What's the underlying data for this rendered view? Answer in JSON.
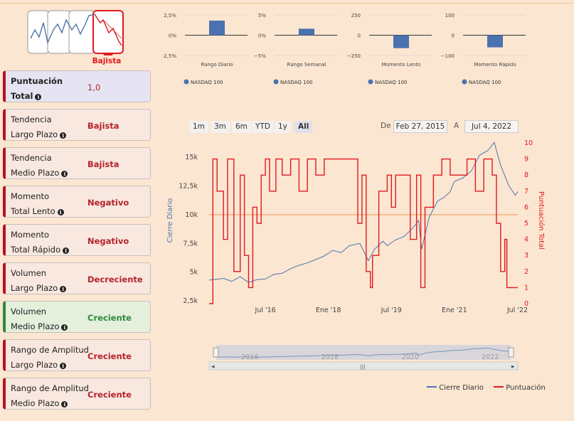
{
  "trend": {
    "label": "Bajista",
    "colors": {
      "accent": "#e0191e"
    }
  },
  "cards": [
    {
      "line1": "Puntuación",
      "line2": "Total",
      "value": "1,0",
      "kind": "total"
    },
    {
      "line1": "Tendencia",
      "line2": "Largo Plazo",
      "value": "Bajista",
      "kind": "red"
    },
    {
      "line1": "Tendencia",
      "line2": "Medio Plazo",
      "value": "Bajista",
      "kind": "red"
    },
    {
      "line1": "Momento",
      "line2": "Total Lento",
      "value": "Negativo",
      "kind": "red"
    },
    {
      "line1": "Momento",
      "line2": "Total Rápido",
      "value": "Negativo",
      "kind": "red"
    },
    {
      "line1": "Volumen",
      "line2": "Largo Plazo",
      "value": "Decreciente",
      "kind": "red"
    },
    {
      "line1": "Volumen",
      "line2": "Medio Plazo",
      "value": "Creciente",
      "kind": "green"
    },
    {
      "line1": "Rango de Amplitud",
      "line2": "Largo Plazo",
      "value": "Creciente",
      "kind": "red"
    },
    {
      "line1": "Rango de Amplitud",
      "line2": "Medio Plazo",
      "value": "Creciente",
      "kind": "red"
    }
  ],
  "range_selector": {
    "buttons": [
      "1m",
      "3m",
      "6m",
      "YTD",
      "1y",
      "All"
    ],
    "active": "All",
    "from_label": "De",
    "from_value": "Feb 27, 2015",
    "to_label": "A",
    "to_value": "Jul 4, 2022"
  },
  "legend": {
    "series1": "Cierre Diario",
    "series2": "Puntuación"
  },
  "chart_data": [
    {
      "type": "bar",
      "title": "Rango Diario",
      "categories": [
        "Rango Diario"
      ],
      "values": [
        1.8
      ],
      "yticks": [
        "2,5%",
        "0%",
        "−2,5%"
      ],
      "ylim": [
        -2.5,
        2.5
      ],
      "legend": "NASDAQ 100",
      "color": "#4a72b0"
    },
    {
      "type": "bar",
      "title": "Rango Semanal",
      "categories": [
        "Rango Semanal"
      ],
      "values": [
        1.6
      ],
      "yticks": [
        "5%",
        "0%",
        "−5%"
      ],
      "ylim": [
        -5,
        5
      ],
      "legend": "NASDAQ 100",
      "color": "#4a72b0"
    },
    {
      "type": "bar",
      "title": "Momento Lento",
      "categories": [
        "Momento Lento"
      ],
      "values": [
        -160
      ],
      "yticks": [
        "250",
        "0",
        "−250"
      ],
      "ylim": [
        -250,
        250
      ],
      "legend": "NASDAQ 100",
      "color": "#4a72b0"
    },
    {
      "type": "bar",
      "title": "Momento Rápido",
      "categories": [
        "Momento Rápido"
      ],
      "values": [
        -60
      ],
      "yticks": [
        "100",
        "0",
        "−100"
      ],
      "ylim": [
        -100,
        100
      ],
      "legend": "NASDAQ 100",
      "color": "#4a72b0"
    },
    {
      "type": "line",
      "ylabel": "Cierre Diario",
      "y2label": "Puntuación Total",
      "xticks": [
        "Jul '16",
        "Ene '18",
        "Jul '19",
        "Ene '21",
        "Jul '22"
      ],
      "yticks": [
        "2,5k",
        "5k",
        "7,5k",
        "10k",
        "12,5k",
        "15k"
      ],
      "y2ticks": [
        "0",
        "1",
        "2",
        "3",
        "4",
        "5",
        "6",
        "7",
        "8",
        "9",
        "10"
      ],
      "ylim": [
        2500,
        16500
      ],
      "y2lim": [
        0,
        10
      ],
      "xlim": [
        2015.16,
        2022.51
      ],
      "threshold": 10000,
      "navigator_ticks": [
        "2016",
        "2018",
        "2020",
        "2022"
      ],
      "series": [
        {
          "name": "Cierre Diario",
          "color": "#4f74ad",
          "x": [
            2015.16,
            2015.5,
            2015.7,
            2015.9,
            2016.1,
            2016.3,
            2016.5,
            2016.7,
            2016.9,
            2017.1,
            2017.3,
            2017.5,
            2017.7,
            2017.9,
            2018.1,
            2018.3,
            2018.5,
            2018.75,
            2018.95,
            2019.1,
            2019.3,
            2019.4,
            2019.6,
            2019.8,
            2020.0,
            2020.15,
            2020.22,
            2020.4,
            2020.6,
            2020.75,
            2020.9,
            2021.0,
            2021.2,
            2021.4,
            2021.6,
            2021.8,
            2021.95,
            2022.1,
            2022.3,
            2022.45,
            2022.51
          ],
          "y": [
            4300,
            4450,
            4200,
            4600,
            4100,
            4350,
            4400,
            4800,
            4900,
            5300,
            5600,
            5800,
            6100,
            6400,
            6900,
            6700,
            7300,
            7500,
            6000,
            7000,
            7700,
            7300,
            7800,
            8100,
            8800,
            9500,
            7000,
            9800,
            11200,
            11500,
            12000,
            12900,
            13200,
            13800,
            15200,
            15600,
            16300,
            14300,
            12500,
            11700,
            12000
          ]
        },
        {
          "name": "Puntuación",
          "color": "#e0191e",
          "x": [
            2015.16,
            2015.25,
            2015.35,
            2015.5,
            2015.6,
            2015.75,
            2015.9,
            2016.0,
            2016.1,
            2016.2,
            2016.3,
            2016.4,
            2016.5,
            2016.6,
            2016.75,
            2016.9,
            2017.1,
            2017.3,
            2017.5,
            2017.7,
            2017.9,
            2018.1,
            2018.3,
            2018.5,
            2018.7,
            2018.8,
            2018.9,
            2019.0,
            2019.05,
            2019.2,
            2019.4,
            2019.5,
            2019.6,
            2019.8,
            2019.95,
            2020.1,
            2020.2,
            2020.3,
            2020.5,
            2020.7,
            2020.9,
            2021.1,
            2021.3,
            2021.5,
            2021.7,
            2021.9,
            2022.0,
            2022.1,
            2022.2,
            2022.25,
            2022.35,
            2022.45,
            2022.51
          ],
          "y": [
            0,
            9,
            7,
            4,
            9,
            2,
            8,
            3,
            1,
            6,
            5,
            8,
            9,
            7,
            9,
            8,
            9,
            7,
            9,
            8,
            9,
            9,
            9,
            9,
            5,
            8,
            2,
            1,
            3,
            7,
            8,
            6,
            8,
            8,
            4,
            8,
            1,
            6,
            8,
            9,
            8,
            8,
            9,
            7,
            9,
            8,
            5,
            2,
            4,
            1,
            1,
            1,
            1
          ]
        }
      ]
    }
  ]
}
